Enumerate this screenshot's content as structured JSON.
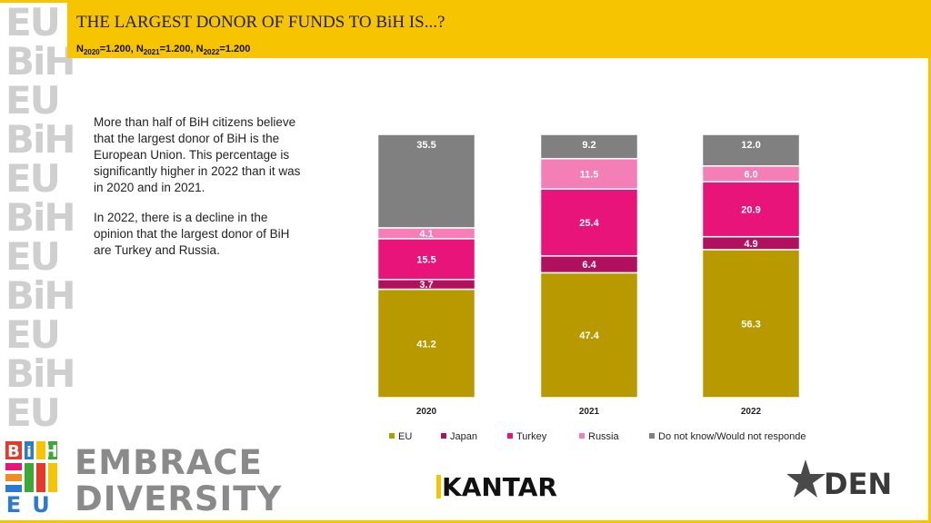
{
  "header": {
    "title": "THE LARGEST DONOR OF FUNDS TO BiH IS...?",
    "n_parts": [
      {
        "label": "N",
        "sub": "2020",
        "value": "=1.200, "
      },
      {
        "label": "N",
        "sub": "2021",
        "value": "=1.200, "
      },
      {
        "label": "N",
        "sub": "2022",
        "value": "=1.200"
      }
    ]
  },
  "sidebar": {
    "rows": [
      "EU",
      "BiH",
      "EU",
      "BiH",
      "EU",
      "BiH",
      "EU",
      "BiH",
      "EU",
      "BiH",
      "EU"
    ]
  },
  "text": {
    "p1": "More than half of BiH citizens believe that the largest donor of BiH is the European Union. This percentage is significantly higher in 2022 than it was in 2020 and in 2021.",
    "p2": "In 2022, there is a decline in the opinion that the largest donor of BiH are Turkey and Russia."
  },
  "chart_data": {
    "type": "bar",
    "stacked": true,
    "categories": [
      "2020",
      "2021",
      "2022"
    ],
    "series": [
      {
        "name": "EU",
        "color": "#b89a00",
        "values": [
          41.2,
          47.4,
          56.3
        ]
      },
      {
        "name": "Japan",
        "color": "#b0105e",
        "values": [
          3.7,
          6.4,
          4.9
        ]
      },
      {
        "name": "Turkey",
        "color": "#e8147a",
        "values": [
          15.5,
          25.4,
          20.9
        ]
      },
      {
        "name": "Russia",
        "color": "#f47fb6",
        "values": [
          4.1,
          11.5,
          6.0
        ]
      },
      {
        "name": "Do not know/Would not responde",
        "color": "#808080",
        "values": [
          35.5,
          9.2,
          12.0
        ]
      }
    ],
    "value_labels": [
      [
        "41.2",
        "47.4",
        "56.3"
      ],
      [
        "3.7",
        "6.4",
        "4.9"
      ],
      [
        "15.5",
        "25.4",
        "20.9"
      ],
      [
        "4.1",
        "11.5",
        "6.0"
      ],
      [
        "35.5",
        "9.2",
        "12.0"
      ]
    ],
    "ylim": [
      0,
      100
    ],
    "grid": false,
    "legend": "bottom"
  },
  "footer": {
    "embrace_line1": "EMBRACE",
    "embrace_line2": "DIVERSITY",
    "ed_logo_letters": [
      "B",
      "i",
      "H",
      "E",
      "U"
    ],
    "kantar": "KANTAR",
    "den": "DEN"
  }
}
